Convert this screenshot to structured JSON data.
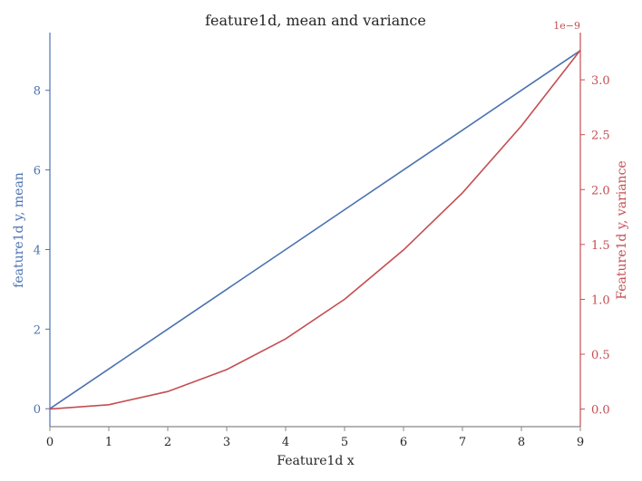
{
  "chart_data": {
    "type": "line",
    "title": "feature1d, mean and variance",
    "xlabel": "Feature1d x",
    "ylabel_left": "feature1d y, mean",
    "ylabel_right": "Feature1d y, variance",
    "right_axis_offset_label": "1e−9",
    "x": [
      0,
      1,
      2,
      3,
      4,
      5,
      6,
      7,
      8,
      9
    ],
    "xlim": [
      0,
      9
    ],
    "ylim_left": [
      -0.45,
      9.45
    ],
    "ylim_right": [
      -0.16,
      3.43
    ],
    "x_ticks": [
      "0",
      "1",
      "2",
      "3",
      "4",
      "5",
      "6",
      "7",
      "8",
      "9"
    ],
    "y_ticks_left": [
      "0",
      "2",
      "4",
      "6",
      "8"
    ],
    "y_ticks_right": [
      "0.0",
      "0.5",
      "1.0",
      "1.5",
      "2.0",
      "2.5",
      "3.0"
    ],
    "grid": false,
    "series": [
      {
        "axis": "left",
        "color": "#4c72b0",
        "values": [
          0,
          1,
          2,
          3,
          4,
          5,
          6,
          7,
          8,
          9
        ]
      },
      {
        "axis": "right",
        "color": "#c44e52",
        "values": [
          0.0,
          0.04,
          0.16,
          0.36,
          0.64,
          1.0,
          1.45,
          1.97,
          2.58,
          3.27
        ]
      }
    ],
    "colors": {
      "left_axis": "#4c72b0",
      "right_axis": "#c44e52",
      "bottom_axis": "#888888"
    }
  }
}
